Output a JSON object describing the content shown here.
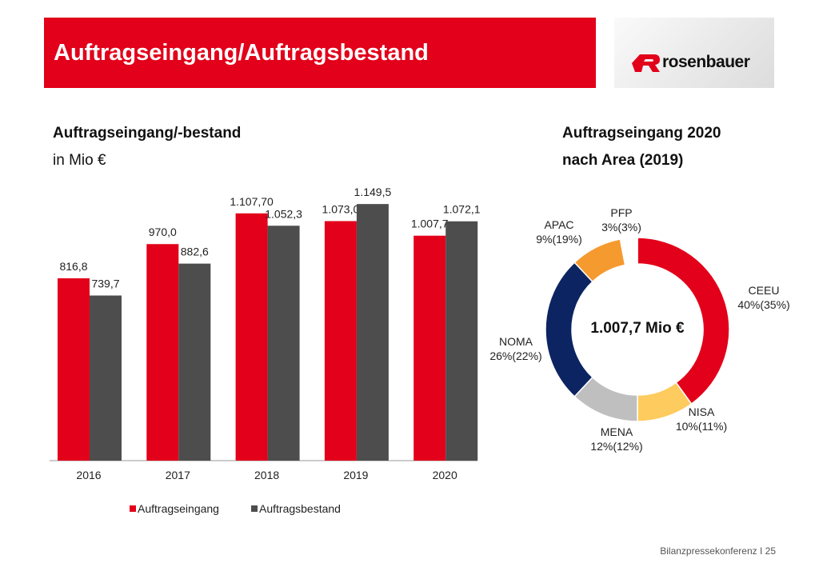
{
  "header": {
    "title": "Auftragseingang/Auftragsbestand",
    "logo_text": "rosenbauer"
  },
  "colors": {
    "red": "#e2001a",
    "dark": "#4d4d4d",
    "navy": "#0c2461",
    "grey": "#bfbfbf",
    "orange": "#f59a2f",
    "yellow": "#fdcb5e",
    "white": "#ffffff"
  },
  "left": {
    "title": "Auftragseingang/-bestand",
    "subtitle": "in Mio €"
  },
  "right": {
    "title": "Auftragseingang 2020",
    "subtitle": "nach Area (2019)"
  },
  "chart_data": [
    {
      "type": "bar",
      "categories": [
        "2016",
        "2017",
        "2018",
        "2019",
        "2020"
      ],
      "series": [
        {
          "name": "Auftragseingang",
          "values": [
            816.8,
            970.0,
            1107.7,
            1073.0,
            1007.7
          ],
          "labels": [
            "816,8",
            "970,0",
            "1.107,70",
            "1.073,0",
            "1.007,7"
          ]
        },
        {
          "name": "Auftragsbestand",
          "values": [
            739.7,
            882.6,
            1052.3,
            1149.5,
            1072.1
          ],
          "labels": [
            "739,7",
            "882,6",
            "1.052,3",
            "1.149,5",
            "1.072,1"
          ]
        }
      ],
      "ylim": [
        0,
        1200
      ],
      "legend": "bottom",
      "grid": false
    },
    {
      "type": "pie",
      "donut": true,
      "center_label": "1.007,7 Mio €",
      "slices": [
        {
          "name": "CEEU",
          "value": 40,
          "label": "40%(35%)"
        },
        {
          "name": "NISA",
          "value": 10,
          "label": "10%(11%)"
        },
        {
          "name": "MENA",
          "value": 12,
          "label": "12%(12%)"
        },
        {
          "name": "NOMA",
          "value": 26,
          "label": "26%(22%)"
        },
        {
          "name": "APAC",
          "value": 9,
          "label": "9%(19%)"
        },
        {
          "name": "PFP",
          "value": 3,
          "label": "3%(3%)"
        }
      ]
    }
  ],
  "footer": "Bilanzpressekonferenz I 25"
}
